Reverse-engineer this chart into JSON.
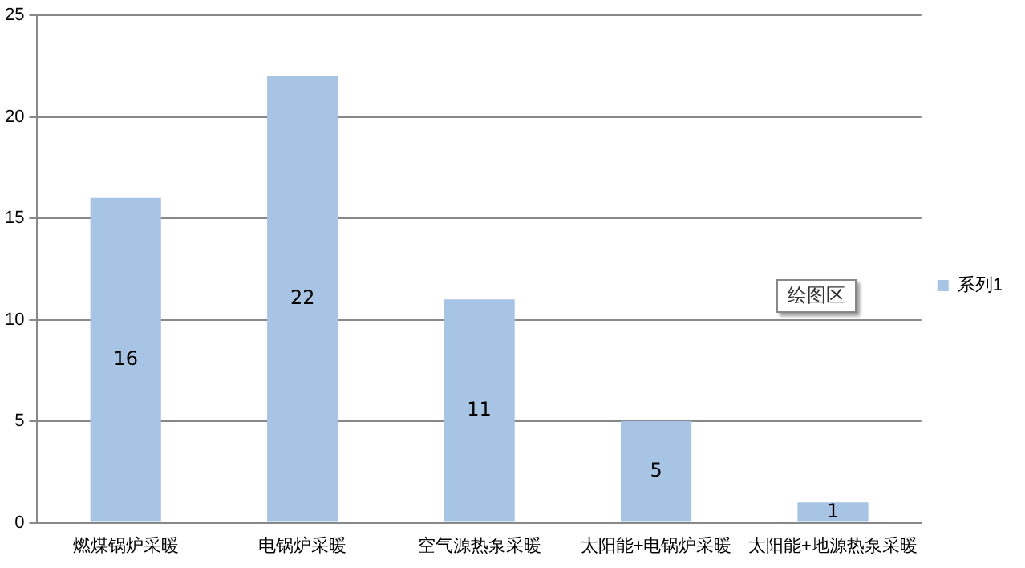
{
  "chart_data": {
    "type": "bar",
    "categories": [
      "燃煤锅炉采暖",
      "电锅炉采暖",
      "空气源热泵采暖",
      "太阳能+电锅炉采暖",
      "太阳能+地源热泵采暖"
    ],
    "series": [
      {
        "name": "系列1",
        "color": "#a7c4e5",
        "values": [
          16,
          22,
          11,
          5,
          1
        ]
      }
    ],
    "data_labels": true,
    "ylim": [
      0,
      25
    ],
    "yticks": [
      0,
      5,
      10,
      15,
      20,
      25
    ],
    "grid": "y",
    "legend": "right",
    "annotations": [
      "绘图区"
    ]
  }
}
